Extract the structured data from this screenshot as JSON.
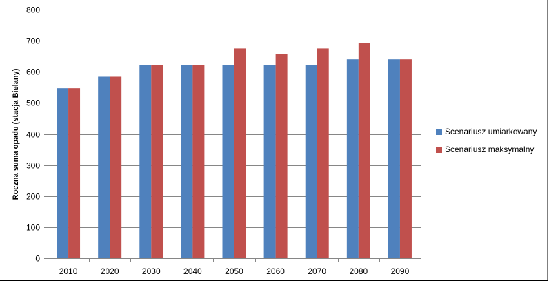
{
  "chart_data": {
    "type": "bar",
    "categories": [
      "2010",
      "2020",
      "2030",
      "2040",
      "2050",
      "2060",
      "2070",
      "2080",
      "2090"
    ],
    "series": [
      {
        "name": "Scenariusz umiarkowany",
        "color": "#4f81bd",
        "values": [
          547,
          584,
          621,
          621,
          621,
          621,
          621,
          640,
          640
        ]
      },
      {
        "name": "Scenariusz maksymalny",
        "color": "#c0504d",
        "values": [
          547,
          584,
          621,
          621,
          675,
          658,
          675,
          693,
          640
        ]
      }
    ],
    "title": "",
    "xlabel": "",
    "ylabel": "Roczna suma opadu  (stacja Bielany)",
    "ylim": [
      0,
      800
    ],
    "yticks": [
      0,
      100,
      200,
      300,
      400,
      500,
      600,
      700,
      800
    ],
    "grid": true,
    "legend_position": "right"
  }
}
